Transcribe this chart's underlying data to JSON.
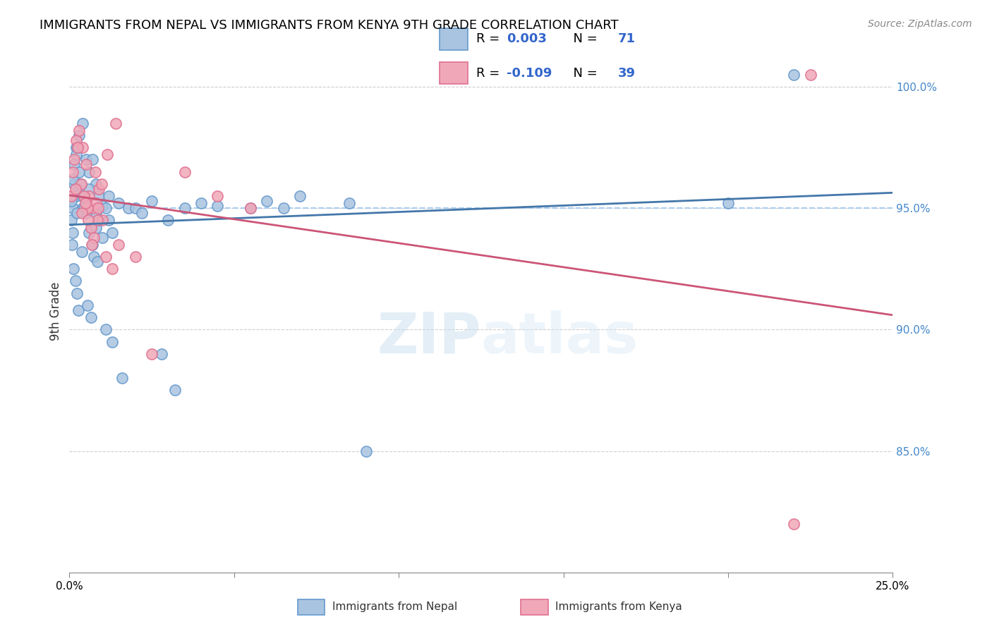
{
  "title": "IMMIGRANTS FROM NEPAL VS IMMIGRANTS FROM KENYA 9TH GRADE CORRELATION CHART",
  "source": "Source: ZipAtlas.com",
  "ylabel": "9th Grade",
  "xlim": [
    0.0,
    25.0
  ],
  "ylim": [
    80.0,
    101.5
  ],
  "yticks": [
    85.0,
    90.0,
    95.0,
    100.0
  ],
  "ytick_labels": [
    "85.0%",
    "90.0%",
    "95.0%",
    "100.0%"
  ],
  "xticks": [
    0.0,
    5.0,
    10.0,
    15.0,
    20.0,
    25.0
  ],
  "xtick_labels": [
    "0.0%",
    "",
    "",
    "",
    "",
    "25.0%"
  ],
  "nepal_color": "#a8c4e0",
  "kenya_color": "#f0a8b8",
  "nepal_edge": "#6699cc",
  "kenya_edge": "#e07090",
  "nepal_R": 0.003,
  "nepal_N": 71,
  "kenya_R": -0.109,
  "kenya_N": 39,
  "trend_color_nepal": "#4477aa",
  "trend_color_kenya": "#cc5577",
  "dashed_color": "#aaccee",
  "watermark_zip": "ZIP",
  "watermark_atlas": "atlas",
  "nepal_x": [
    0.1,
    0.2,
    0.15,
    0.3,
    0.4,
    0.5,
    0.6,
    0.7,
    0.8,
    0.9,
    0.05,
    0.1,
    0.2,
    0.3,
    0.4,
    0.5,
    0.6,
    0.8,
    1.0,
    1.2,
    0.05,
    0.1,
    0.15,
    0.2,
    0.25,
    0.3,
    0.35,
    0.4,
    0.45,
    0.5,
    0.6,
    0.7,
    0.8,
    0.9,
    1.0,
    1.1,
    1.2,
    1.3,
    1.5,
    1.8,
    2.0,
    2.2,
    2.5,
    3.0,
    3.5,
    4.0,
    4.5,
    5.5,
    6.0,
    7.0,
    0.12,
    0.18,
    0.22,
    0.28,
    0.55,
    0.65,
    0.75,
    0.85,
    1.1,
    1.3,
    1.6,
    2.8,
    3.2,
    6.5,
    8.5,
    9.0,
    20.0,
    22.0,
    0.08,
    0.22,
    0.38
  ],
  "nepal_y": [
    95.0,
    97.5,
    96.0,
    98.0,
    98.5,
    97.0,
    96.5,
    97.0,
    96.0,
    95.5,
    94.5,
    94.0,
    95.5,
    96.0,
    95.0,
    95.2,
    95.8,
    94.8,
    95.1,
    94.5,
    95.3,
    96.2,
    96.8,
    97.2,
    97.5,
    96.5,
    96.0,
    95.5,
    95.0,
    94.8,
    94.0,
    93.5,
    94.2,
    94.5,
    93.8,
    95.0,
    95.5,
    94.0,
    95.2,
    95.0,
    95.0,
    94.8,
    95.3,
    94.5,
    95.0,
    95.2,
    95.1,
    95.0,
    95.3,
    95.5,
    92.5,
    92.0,
    91.5,
    90.8,
    91.0,
    90.5,
    93.0,
    92.8,
    90.0,
    89.5,
    88.0,
    89.0,
    87.5,
    95.0,
    95.2,
    85.0,
    95.2,
    100.5,
    93.5,
    94.8,
    93.2
  ],
  "kenya_x": [
    0.1,
    0.2,
    0.3,
    0.4,
    0.5,
    0.6,
    0.7,
    0.8,
    0.9,
    1.0,
    0.15,
    0.25,
    0.35,
    0.45,
    0.55,
    0.65,
    0.75,
    0.85,
    1.1,
    1.3,
    1.5,
    2.0,
    2.5,
    3.5,
    4.5,
    5.5,
    0.05,
    0.18,
    0.38,
    0.48,
    0.58,
    0.68,
    0.78,
    0.88,
    0.98,
    1.15,
    1.4,
    22.0,
    22.5
  ],
  "kenya_y": [
    96.5,
    97.8,
    98.2,
    97.5,
    96.8,
    95.5,
    95.0,
    95.2,
    95.8,
    94.5,
    97.0,
    97.5,
    96.0,
    95.5,
    95.0,
    94.2,
    93.8,
    94.5,
    93.0,
    92.5,
    93.5,
    93.0,
    89.0,
    96.5,
    95.5,
    95.0,
    95.5,
    95.8,
    94.8,
    95.2,
    94.5,
    93.5,
    96.5,
    95.0,
    96.0,
    97.2,
    98.5,
    82.0,
    100.5
  ]
}
